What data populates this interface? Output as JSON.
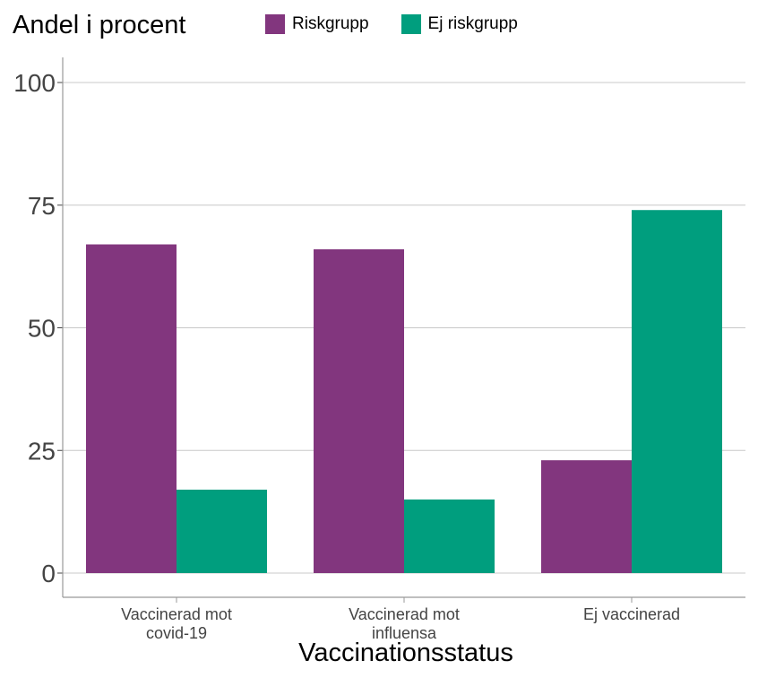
{
  "chart_data": {
    "type": "bar",
    "ylabel": "Andel i procent",
    "xlabel": "Vaccinationsstatus",
    "categories": [
      [
        "Vaccinerad mot",
        "covid-19"
      ],
      [
        "Vaccinerad mot",
        "influensa"
      ],
      [
        "Ej vaccinerad"
      ]
    ],
    "series": [
      {
        "name": "Riskgrupp",
        "color": "#82367e",
        "values": [
          67,
          66,
          23
        ]
      },
      {
        "name": "Ej riskgrupp",
        "color": "#009e7e",
        "values": [
          17,
          15,
          74
        ]
      }
    ],
    "ylim": [
      0,
      100
    ],
    "yticks": [
      "0",
      "25",
      "50",
      "75",
      "100"
    ],
    "grid": true,
    "legend_position": "top"
  }
}
